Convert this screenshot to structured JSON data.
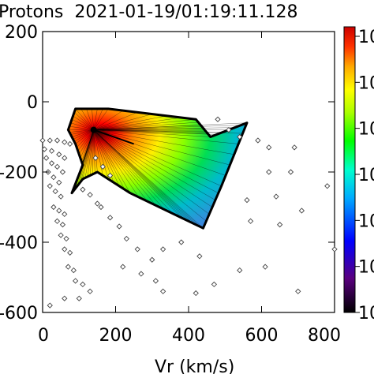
{
  "chart_data": {
    "type": "contour",
    "title": "Protons  2021-01-19/01:19:11.128",
    "xlabel": "Vr (km/s)",
    "ylabel": "",
    "xlim": [
      0,
      800
    ],
    "ylim": [
      -600,
      200
    ],
    "x_ticks": [
      0,
      200,
      400,
      600,
      800
    ],
    "y_ticks": [
      200,
      0,
      -200,
      -400,
      -600
    ],
    "x_tick_labels": [
      "0",
      "200",
      "400",
      "600",
      "800"
    ],
    "y_tick_labels": [
      "200",
      "0",
      "-200",
      "-400",
      "-600"
    ],
    "colorbar": {
      "tick_labels": [
        "10",
        "10",
        "10",
        "10",
        "10",
        "10",
        "10"
      ],
      "colors": [
        "#000000",
        "#4b0082",
        "#0000ff",
        "#00aaff",
        "#00ffcc",
        "#00ff00",
        "#aaff00",
        "#ffff00",
        "#ffaa00",
        "#ff5500",
        "#ff0000",
        "#cc0000"
      ]
    },
    "sample_points": [
      [
        0,
        -110
      ],
      [
        20,
        -110
      ],
      [
        40,
        -110
      ],
      [
        60,
        -115
      ],
      [
        75,
        -120
      ],
      [
        5,
        -135
      ],
      [
        25,
        -140
      ],
      [
        45,
        -150
      ],
      [
        60,
        -160
      ],
      [
        10,
        -160
      ],
      [
        25,
        -175
      ],
      [
        40,
        -185
      ],
      [
        55,
        -200
      ],
      [
        15,
        -200
      ],
      [
        30,
        -215
      ],
      [
        45,
        -230
      ],
      [
        20,
        -240
      ],
      [
        35,
        -255
      ],
      [
        50,
        -270
      ],
      [
        30,
        -300
      ],
      [
        45,
        -310
      ],
      [
        60,
        -320
      ],
      [
        40,
        -340
      ],
      [
        55,
        -350
      ],
      [
        50,
        -380
      ],
      [
        65,
        -390
      ],
      [
        60,
        -420
      ],
      [
        75,
        -430
      ],
      [
        70,
        -470
      ],
      [
        85,
        -480
      ],
      [
        90,
        -510
      ],
      [
        110,
        -520
      ],
      [
        130,
        -540
      ],
      [
        20,
        -580
      ],
      [
        60,
        -560
      ],
      [
        100,
        -560
      ],
      [
        145,
        -160
      ],
      [
        165,
        -185
      ],
      [
        185,
        -210
      ],
      [
        110,
        -250
      ],
      [
        130,
        -265
      ],
      [
        150,
        -290
      ],
      [
        160,
        -300
      ],
      [
        185,
        -330
      ],
      [
        210,
        -355
      ],
      [
        230,
        -390
      ],
      [
        260,
        -420
      ],
      [
        300,
        -450
      ],
      [
        220,
        -470
      ],
      [
        270,
        -490
      ],
      [
        310,
        -510
      ],
      [
        330,
        -420
      ],
      [
        380,
        -400
      ],
      [
        330,
        -540
      ],
      [
        430,
        -440
      ],
      [
        420,
        -545
      ],
      [
        470,
        -520
      ],
      [
        480,
        -50
      ],
      [
        510,
        -80
      ],
      [
        540,
        -100
      ],
      [
        590,
        -110
      ],
      [
        620,
        -130
      ],
      [
        690,
        -130
      ],
      [
        620,
        -200
      ],
      [
        680,
        -200
      ],
      [
        780,
        -240
      ],
      [
        560,
        -280
      ],
      [
        640,
        -270
      ],
      [
        710,
        -310
      ],
      [
        570,
        -340
      ],
      [
        650,
        -350
      ],
      [
        800,
        -420
      ],
      [
        540,
        -480
      ],
      [
        610,
        -470
      ],
      [
        700,
        -540
      ]
    ],
    "filled_region": {
      "outline": [
        [
          90,
          -20
        ],
        [
          180,
          -20
        ],
        [
          420,
          -50
        ],
        [
          460,
          -100
        ],
        [
          560,
          -60
        ],
        [
          490,
          -240
        ],
        [
          440,
          -360
        ],
        [
          380,
          -330
        ],
        [
          240,
          -260
        ],
        [
          150,
          -200
        ],
        [
          110,
          -220
        ],
        [
          80,
          -260
        ],
        [
          110,
          -180
        ],
        [
          90,
          -120
        ],
        [
          70,
          -80
        ]
      ],
      "peak": [
        140,
        -80
      ]
    }
  }
}
